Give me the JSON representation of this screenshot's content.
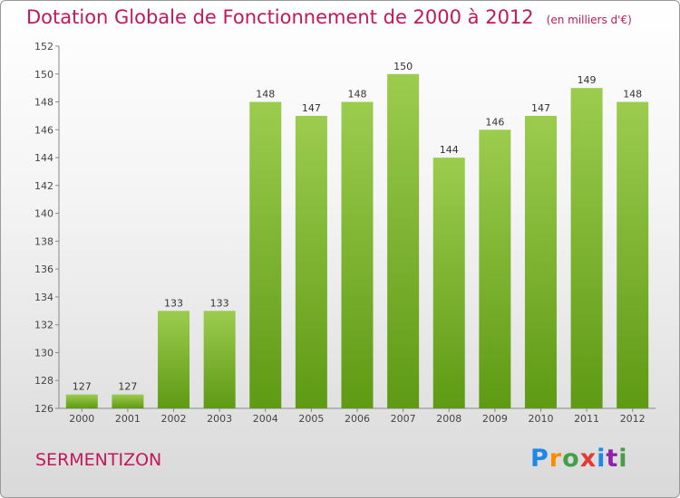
{
  "header": {
    "title": "Dotation Globale de Fonctionnement de 2000 à 2012",
    "unit": "(en milliers d'€)"
  },
  "commune": "SERMENTIZON",
  "logo": {
    "letters": [
      "P",
      "r",
      "o",
      "x",
      "i",
      "t",
      "i"
    ],
    "colors": [
      "#1e88e5",
      "#fb8c00",
      "#43a047",
      "#e53935",
      "#1e88e5",
      "#8e24aa",
      "#43a047"
    ]
  },
  "colors": {
    "bar_top": "#9ccc4e",
    "bar_bottom": "#5e9a14",
    "title": "#c2185b"
  },
  "chart_data": {
    "type": "bar",
    "categories": [
      "2000",
      "2001",
      "2002",
      "2003",
      "2004",
      "2005",
      "2006",
      "2007",
      "2008",
      "2009",
      "2010",
      "2011",
      "2012"
    ],
    "values": [
      127,
      127,
      133,
      133,
      148,
      147,
      148,
      150,
      144,
      146,
      147,
      149,
      148
    ],
    "ylim": [
      126,
      152
    ],
    "yticks": [
      126,
      128,
      130,
      132,
      134,
      136,
      138,
      140,
      142,
      144,
      146,
      148,
      150,
      152
    ],
    "grid": false
  }
}
